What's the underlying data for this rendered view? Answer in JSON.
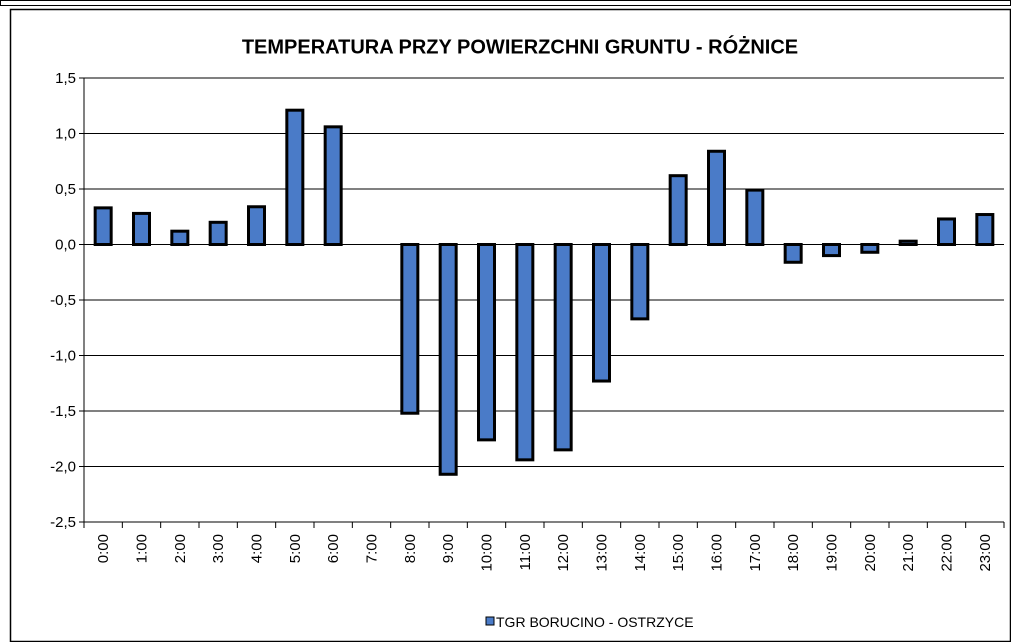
{
  "chart_data": {
    "type": "bar",
    "title": "TEMPERATURA PRZY POWIERZCHNI GRUNTU -   RÓŻNICE",
    "categories": [
      "0:00",
      "1:00",
      "2:00",
      "3:00",
      "4:00",
      "5:00",
      "6:00",
      "7:00",
      "8:00",
      "9:00",
      "10:00",
      "11:00",
      "12:00",
      "13:00",
      "14:00",
      "15:00",
      "16:00",
      "17:00",
      "18:00",
      "19:00",
      "20:00",
      "21:00",
      "22:00",
      "23:00"
    ],
    "series": [
      {
        "name": "TGR BORUCINO - OSTRZYCE",
        "color": "#4a7bc8",
        "values": [
          0.33,
          0.28,
          0.12,
          0.2,
          0.34,
          1.21,
          1.06,
          0,
          -1.52,
          -2.07,
          -1.76,
          -1.94,
          -1.85,
          -1.23,
          -0.67,
          0.62,
          0.84,
          0.49,
          -0.16,
          -0.1,
          -0.07,
          0.03,
          0.23,
          0.27
        ]
      }
    ],
    "ylim": [
      -2.5,
      1.5
    ],
    "yticks": [
      {
        "value": -2.5,
        "label": "-2,5"
      },
      {
        "value": -2,
        "label": "-2,0"
      },
      {
        "value": -1.5,
        "label": "-1,5"
      },
      {
        "value": -1,
        "label": "-1,0"
      },
      {
        "value": -0.5,
        "label": "-0,5"
      },
      {
        "value": 0,
        "label": "0,0"
      },
      {
        "value": 0.5,
        "label": "0,5"
      },
      {
        "value": 1,
        "label": "1,0"
      },
      {
        "value": 1.5,
        "label": "1,5"
      }
    ],
    "grid": true,
    "legend": "bottom"
  }
}
